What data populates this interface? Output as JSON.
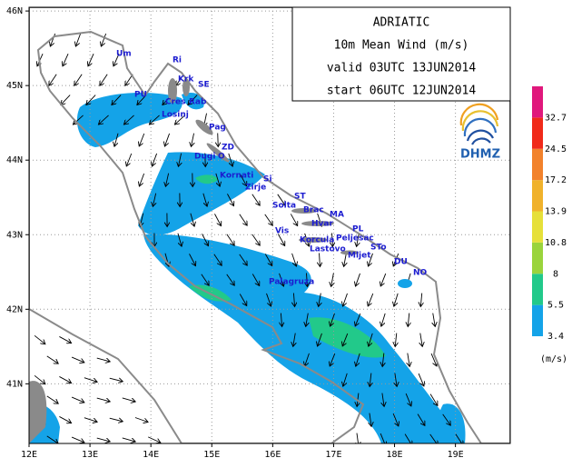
{
  "map": {
    "title_box": [
      "ADRIATIC",
      "10m Mean Wind (m/s)",
      "valid 03UTC 13JUN2014",
      "start 06UTC 12JUN2014"
    ],
    "xlim": [
      12,
      19.9
    ],
    "ylim": [
      40.2,
      46.05
    ],
    "xticks": [
      {
        "value": 12,
        "label": "12E"
      },
      {
        "value": 13,
        "label": "13E"
      },
      {
        "value": 14,
        "label": "14E"
      },
      {
        "value": 15,
        "label": "15E"
      },
      {
        "value": 16,
        "label": "16E"
      },
      {
        "value": 17,
        "label": "17E"
      },
      {
        "value": 18,
        "label": "18E"
      },
      {
        "value": 19,
        "label": "19E"
      }
    ],
    "yticks": [
      {
        "value": 41,
        "label": "41N"
      },
      {
        "value": 42,
        "label": "42N"
      },
      {
        "value": 43,
        "label": "43N"
      },
      {
        "value": 44,
        "label": "44N"
      },
      {
        "value": 45,
        "label": "45N"
      },
      {
        "value": 46,
        "label": "46N"
      }
    ],
    "grid": true,
    "stations": [
      "Um",
      "Ri",
      "Krk",
      "SE",
      "PU",
      "Cres",
      "Rab",
      "Losinj",
      "Pag",
      "ZD",
      "Dugi",
      "O",
      "Kornati",
      "Si",
      "Zirje",
      "ST",
      "Solta",
      "Brac",
      "MA",
      "Hvar",
      "PL",
      "Vis",
      "Korcula",
      "Peljesac",
      "Lastovo",
      "Mljet",
      "STo",
      "DU",
      "NO",
      "Palagruza"
    ],
    "legend": {
      "levels": [
        3.4,
        5.5,
        8,
        10.8,
        13.9,
        17.2,
        24.5,
        32.7
      ],
      "colors": [
        "#14a3e8",
        "#22c98a",
        "#9ad43c",
        "#e6e03a",
        "#f0b22c",
        "#f2822c",
        "#f02a1a",
        "#e0187c"
      ],
      "unit": "(m/s)"
    },
    "logo": "DHMZ"
  }
}
